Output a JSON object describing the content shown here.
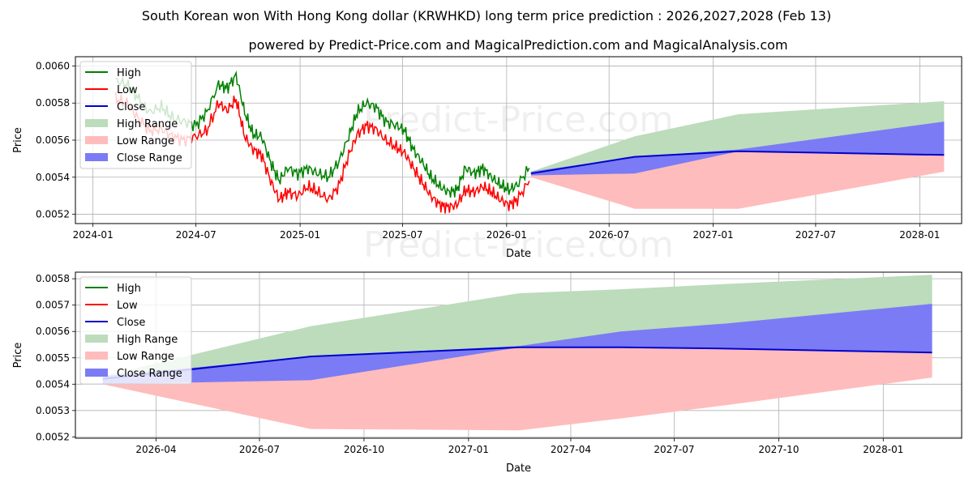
{
  "title": "South Korean won With Hong Kong dollar (KRWHKD) long term price prediction : 2026,2027,2028 (Feb 13)",
  "subtitle": "powered by Predict-Price.com and MagicalPrediction.com and MagicalAnalysis.com",
  "watermark": "Predict-Price.com",
  "colors": {
    "high": "#008000",
    "low": "#ff0000",
    "close": "#0000cc",
    "high_range": "#bcdcbc",
    "low_range": "#ffbcbc",
    "close_range": "#7b7bf5",
    "grid": "#b0b0b0"
  },
  "chart_data": [
    {
      "type": "line",
      "name": "top",
      "xlabel": "Date",
      "ylabel": "Price",
      "xlim": [
        "2023-12-01",
        "2028-03-15"
      ],
      "ylim": [
        0.00515,
        0.00605
      ],
      "x_ticks": [
        "2024-01",
        "2024-07",
        "2025-01",
        "2025-07",
        "2026-01",
        "2026-07",
        "2027-01",
        "2027-07",
        "2028-01"
      ],
      "y_ticks": [
        "0.0052",
        "0.0054",
        "0.0056",
        "0.0058",
        "0.0060"
      ],
      "legend": [
        "High",
        "Low",
        "Close",
        "High Range",
        "Low Range",
        "Close Range"
      ],
      "legend_position": "top-left",
      "history": {
        "dates": [
          "2024-02-10",
          "2024-03-01",
          "2024-03-20",
          "2024-04-10",
          "2024-05-01",
          "2024-05-20",
          "2024-06-10",
          "2024-07-01",
          "2024-07-20",
          "2024-08-10",
          "2024-08-25",
          "2024-09-10",
          "2024-09-25",
          "2024-10-10",
          "2024-10-25",
          "2024-11-10",
          "2024-11-25",
          "2024-12-10",
          "2024-12-28",
          "2025-01-15",
          "2025-02-01",
          "2025-02-20",
          "2025-03-10",
          "2025-03-28",
          "2025-04-12",
          "2025-04-28",
          "2025-05-15",
          "2025-06-01",
          "2025-06-20",
          "2025-07-05",
          "2025-07-20",
          "2025-08-05",
          "2025-08-20",
          "2025-09-05",
          "2025-09-20",
          "2025-10-05",
          "2025-10-20",
          "2025-11-05",
          "2025-11-20",
          "2025-12-05",
          "2025-12-20",
          "2026-01-05",
          "2026-01-20",
          "2026-02-10"
        ],
        "high": [
          0.00592,
          0.0059,
          0.00583,
          0.00575,
          0.00578,
          0.00572,
          0.0057,
          0.00568,
          0.00575,
          0.0059,
          0.00588,
          0.00595,
          0.00575,
          0.00563,
          0.00562,
          0.00548,
          0.00538,
          0.00545,
          0.00542,
          0.00545,
          0.00542,
          0.0054,
          0.00548,
          0.00562,
          0.00575,
          0.0058,
          0.00578,
          0.0057,
          0.00568,
          0.00565,
          0.00555,
          0.00548,
          0.0054,
          0.00535,
          0.00532,
          0.00533,
          0.00545,
          0.00542,
          0.00545,
          0.0054,
          0.00536,
          0.00533,
          0.00536,
          0.00545
        ],
        "low": [
          0.00582,
          0.0058,
          0.00572,
          0.00565,
          0.00566,
          0.00562,
          0.0056,
          0.00562,
          0.00565,
          0.0058,
          0.00576,
          0.00582,
          0.00562,
          0.00555,
          0.00552,
          0.00538,
          0.00528,
          0.00532,
          0.0053,
          0.00535,
          0.00532,
          0.00528,
          0.00535,
          0.00552,
          0.00563,
          0.00568,
          0.00566,
          0.0056,
          0.00556,
          0.00553,
          0.00545,
          0.00537,
          0.0053,
          0.00525,
          0.00524,
          0.00525,
          0.00533,
          0.00532,
          0.00535,
          0.00532,
          0.00528,
          0.00525,
          0.00528,
          0.00538
        ]
      },
      "forecast": {
        "dates": [
          "2026-02-13",
          "2026-08-15",
          "2027-02-15",
          "2028-02-13"
        ],
        "close": [
          0.00542,
          0.00551,
          0.00554,
          0.00552
        ],
        "high_range_upper": [
          0.00543,
          0.00562,
          0.00574,
          0.00581
        ],
        "low_range_lower": [
          0.0054,
          0.00523,
          0.00523,
          0.00543
        ],
        "close_range_upper": [
          0.00543,
          0.00551,
          0.00555,
          0.0057
        ],
        "close_range_lower": [
          0.00541,
          0.00542,
          0.00554,
          0.00552
        ]
      }
    },
    {
      "type": "line",
      "name": "bottom",
      "xlabel": "Date",
      "ylabel": "Price",
      "xlim": [
        "2026-01-20",
        "2028-03-10"
      ],
      "ylim": [
        0.005195,
        0.005825
      ],
      "x_ticks": [
        "2026-04",
        "2026-07",
        "2026-10",
        "2027-01",
        "2027-04",
        "2027-07",
        "2027-10",
        "2028-01"
      ],
      "y_ticks": [
        "0.0052",
        "0.0053",
        "0.0054",
        "0.0055",
        "0.0056",
        "0.0057",
        "0.0058"
      ],
      "legend": [
        "High",
        "Low",
        "Close",
        "High Range",
        "Low Range",
        "Close Range"
      ],
      "legend_position": "top-left",
      "forecast": {
        "dates": [
          "2026-02-13",
          "2026-08-15",
          "2027-02-15",
          "2027-05-15",
          "2027-08-15",
          "2028-02-13"
        ],
        "close": [
          0.00542,
          0.005505,
          0.00554,
          0.00554,
          0.005535,
          0.00552
        ],
        "high_range_upper": [
          0.00543,
          0.00562,
          0.005745,
          0.00576,
          0.00578,
          0.005815
        ],
        "low_range_lower": [
          0.0054,
          0.00523,
          0.005225,
          0.00527,
          0.00532,
          0.005425
        ],
        "close_range_upper": [
          0.00543,
          0.005505,
          0.005545,
          0.0056,
          0.00563,
          0.005705
        ],
        "close_range_lower": [
          0.0054,
          0.005415,
          0.00554,
          0.00554,
          0.005535,
          0.00552
        ]
      }
    }
  ]
}
